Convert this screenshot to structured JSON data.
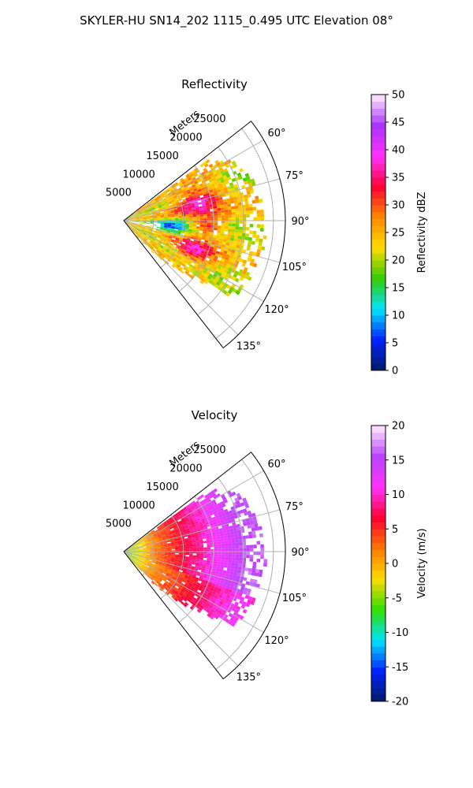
{
  "figure": {
    "title": "SKYLER-HU  SN14_202  1115_0.495 UTC Elevation 08°"
  },
  "chart_data": [
    {
      "type": "heatmap",
      "projection": "polar-sector",
      "title": "Reflectivity",
      "range_label": "Meters",
      "range_ticks": [
        "5000",
        "10000",
        "15000",
        "20000",
        "25000"
      ],
      "range_tick_values": [
        5000,
        10000,
        15000,
        20000,
        25000
      ],
      "range_max": 27000,
      "azimuth_ticks": [
        "60°",
        "75°",
        "90°",
        "105°",
        "120°",
        "135°"
      ],
      "azimuth_tick_values": [
        60,
        75,
        90,
        105,
        120,
        135
      ],
      "azimuth_range": [
        52,
        142
      ],
      "grid": true,
      "colorbar": {
        "label": "Reflectivity dBZ",
        "min": 0,
        "max": 50,
        "ticks": [
          "0",
          "5",
          "10",
          "15",
          "20",
          "25",
          "30",
          "35",
          "40",
          "45",
          "50"
        ],
        "tick_values": [
          0,
          5,
          10,
          15,
          20,
          25,
          30,
          35,
          40,
          45,
          50
        ]
      },
      "colors": {
        "low": "#001a66",
        "cyan": "#00e5ff",
        "green": "#33cc00",
        "yellow": "#ffdd00",
        "orange": "#ff8800",
        "red": "#ff0033",
        "magenta": "#ff33ff",
        "purple": "#aa33ff",
        "high": "#ffeeff"
      }
    },
    {
      "type": "heatmap",
      "projection": "polar-sector",
      "title": "Velocity",
      "range_label": "Meters",
      "range_ticks": [
        "5000",
        "10000",
        "15000",
        "20000",
        "25000"
      ],
      "range_tick_values": [
        5000,
        10000,
        15000,
        20000,
        25000
      ],
      "range_max": 27000,
      "azimuth_ticks": [
        "60°",
        "75°",
        "90°",
        "105°",
        "120°",
        "135°"
      ],
      "azimuth_tick_values": [
        60,
        75,
        90,
        105,
        120,
        135
      ],
      "azimuth_range": [
        52,
        142
      ],
      "grid": true,
      "colorbar": {
        "label": "Velocity (m/s)",
        "min": -20,
        "max": 20,
        "ticks": [
          "-20",
          "-15",
          "-10",
          "-5",
          "0",
          "5",
          "10",
          "15",
          "20"
        ],
        "tick_values": [
          -20,
          -15,
          -10,
          -5,
          0,
          5,
          10,
          15,
          20
        ]
      },
      "colors": {
        "low": "#001a66",
        "cyan": "#00e5ff",
        "green": "#33dd00",
        "yellow": "#ffdd00",
        "orange": "#ff7700",
        "red": "#ff0033",
        "magenta": "#ff33ff",
        "purple": "#bb44ff",
        "high": "#ffeeff"
      }
    }
  ]
}
